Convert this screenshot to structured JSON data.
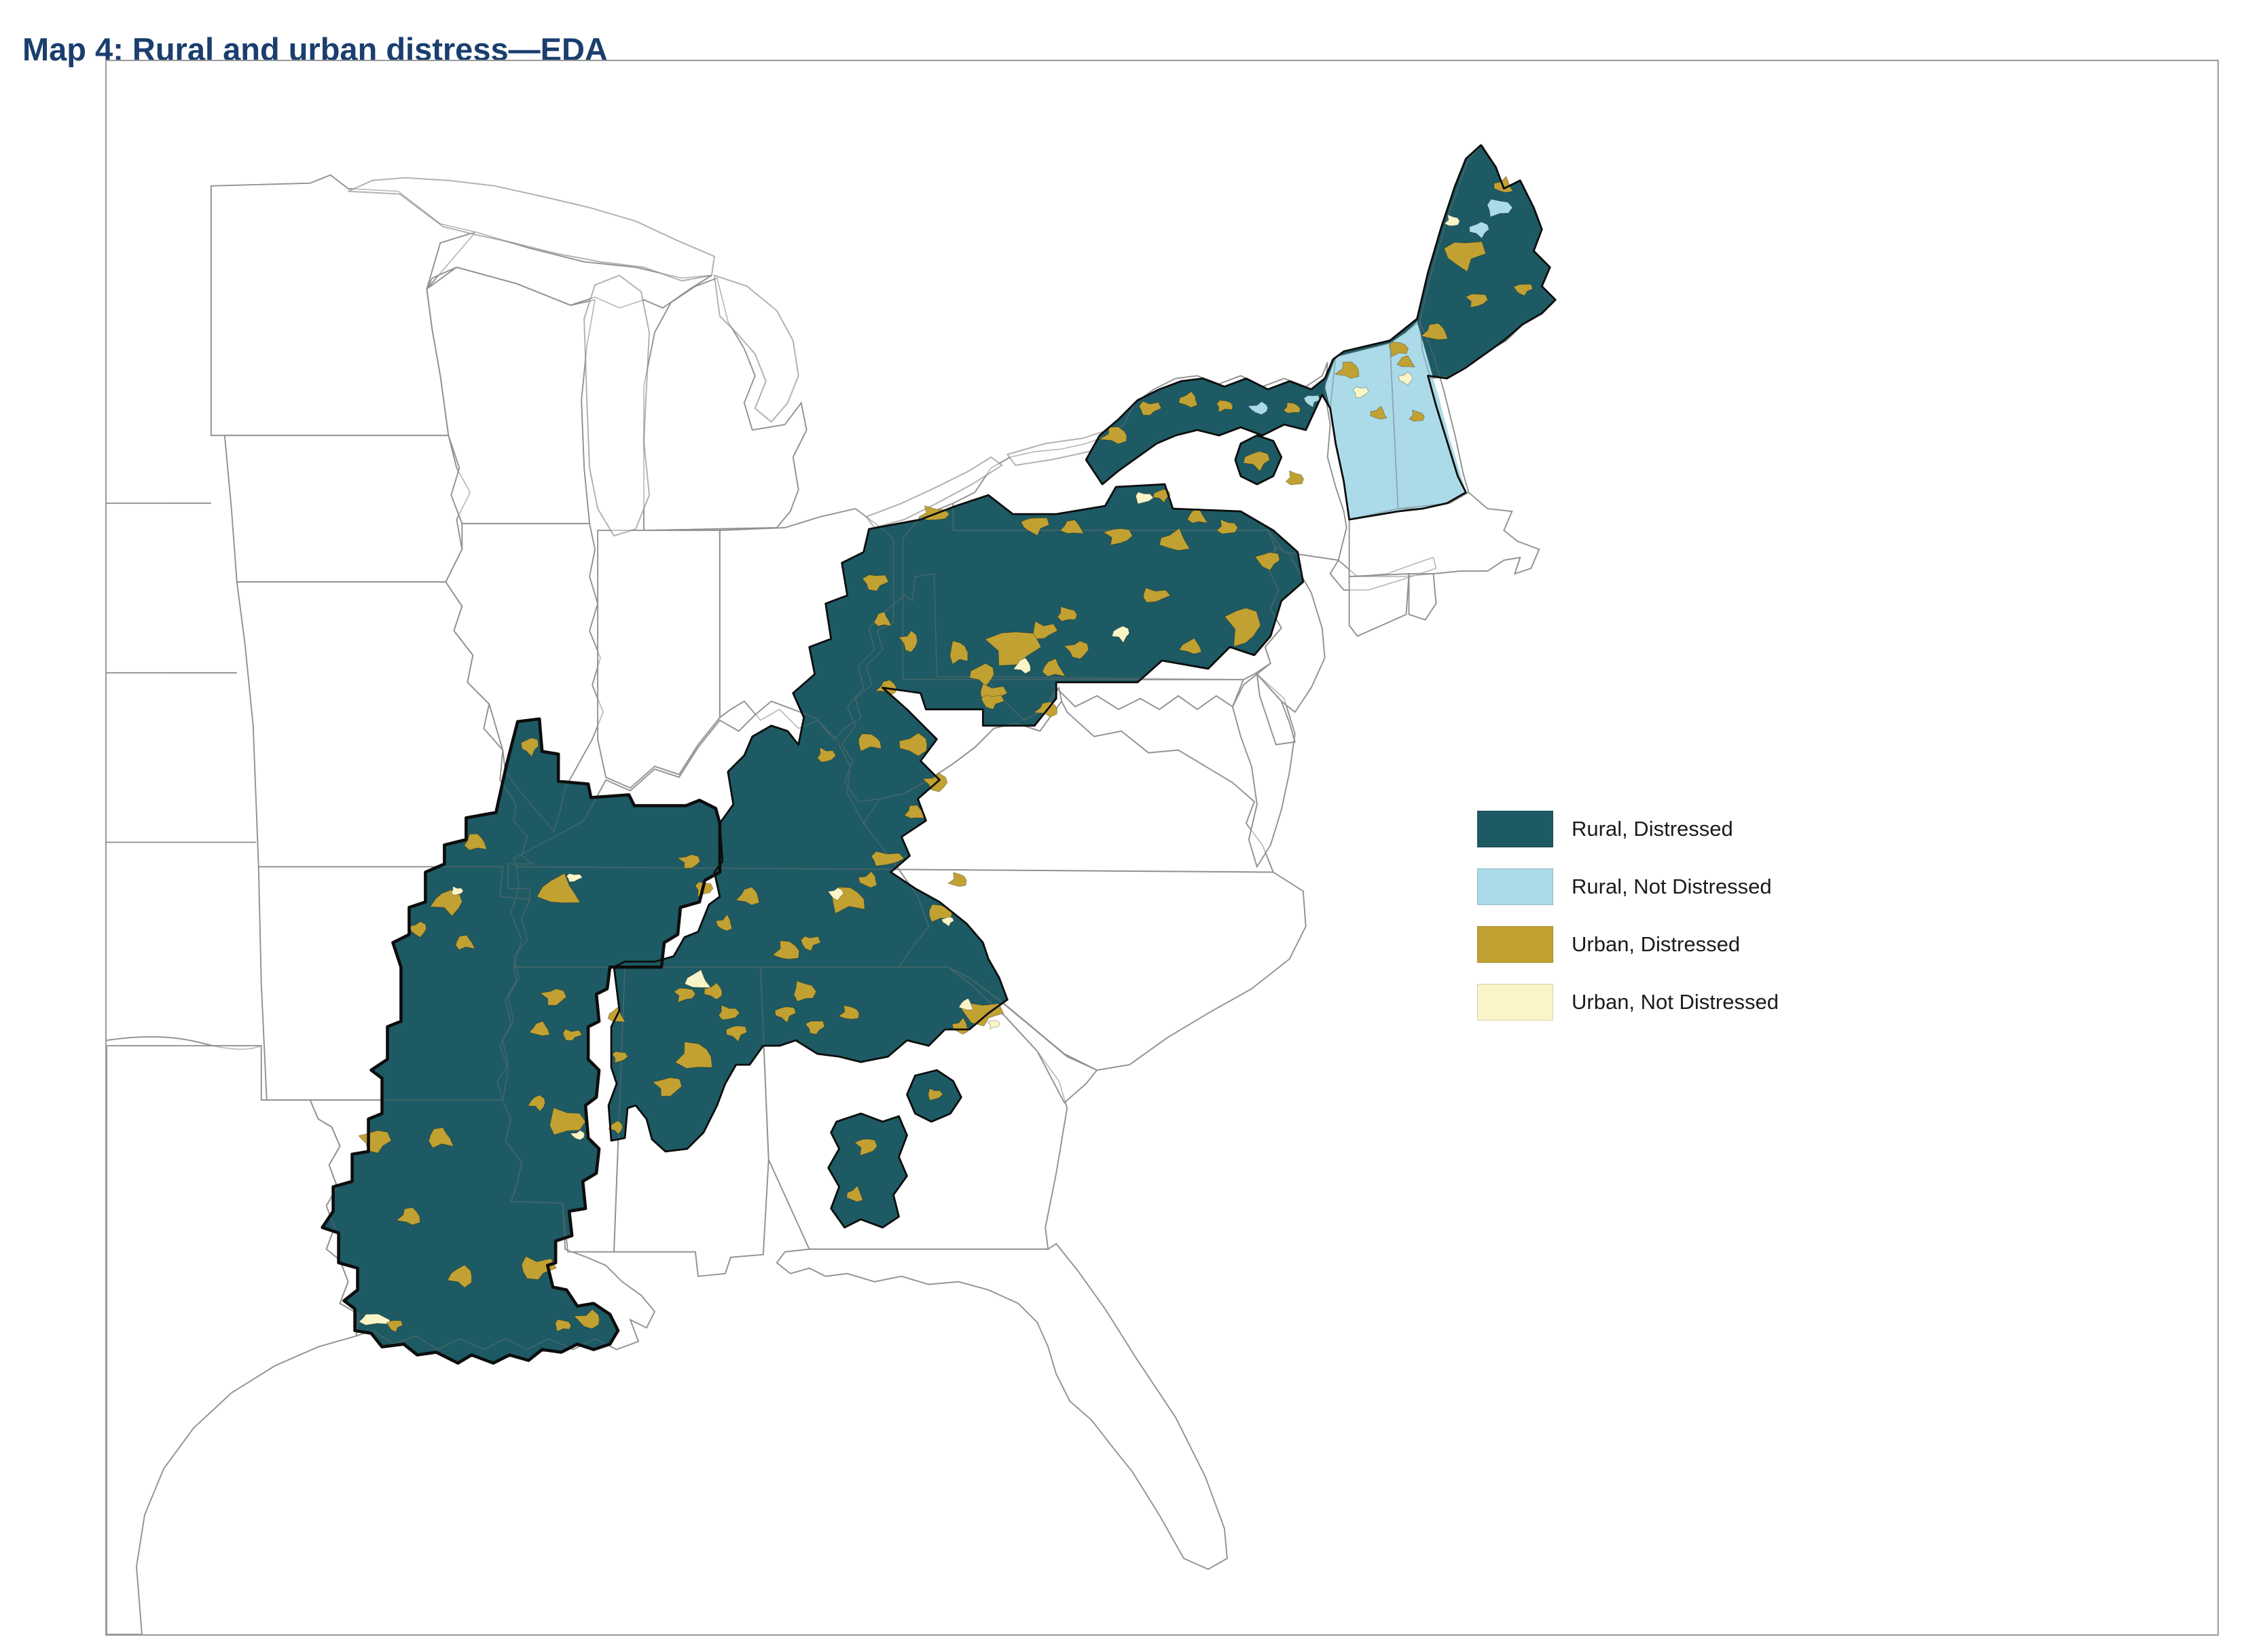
{
  "title": "Map 4: Rural and urban distress—EDA",
  "legend": {
    "items": [
      {
        "label": "Rural, Distressed",
        "color": "#1d5a64"
      },
      {
        "label": "Rural, Not Distressed",
        "color": "#abdbe8"
      },
      {
        "label": "Urban, Distressed",
        "color": "#c2a133"
      },
      {
        "label": "Urban, Not Distressed",
        "color": "#faf5c8"
      }
    ]
  },
  "colors": {
    "rural_distressed": "#1d5a64",
    "rural_not_distressed": "#abdbe8",
    "urban_distressed": "#c2a133",
    "urban_not_distressed": "#faf5c8",
    "title": "#1a3e6e",
    "region_outline": "#0d0d0d",
    "state_border": "#b2b2b2"
  }
}
